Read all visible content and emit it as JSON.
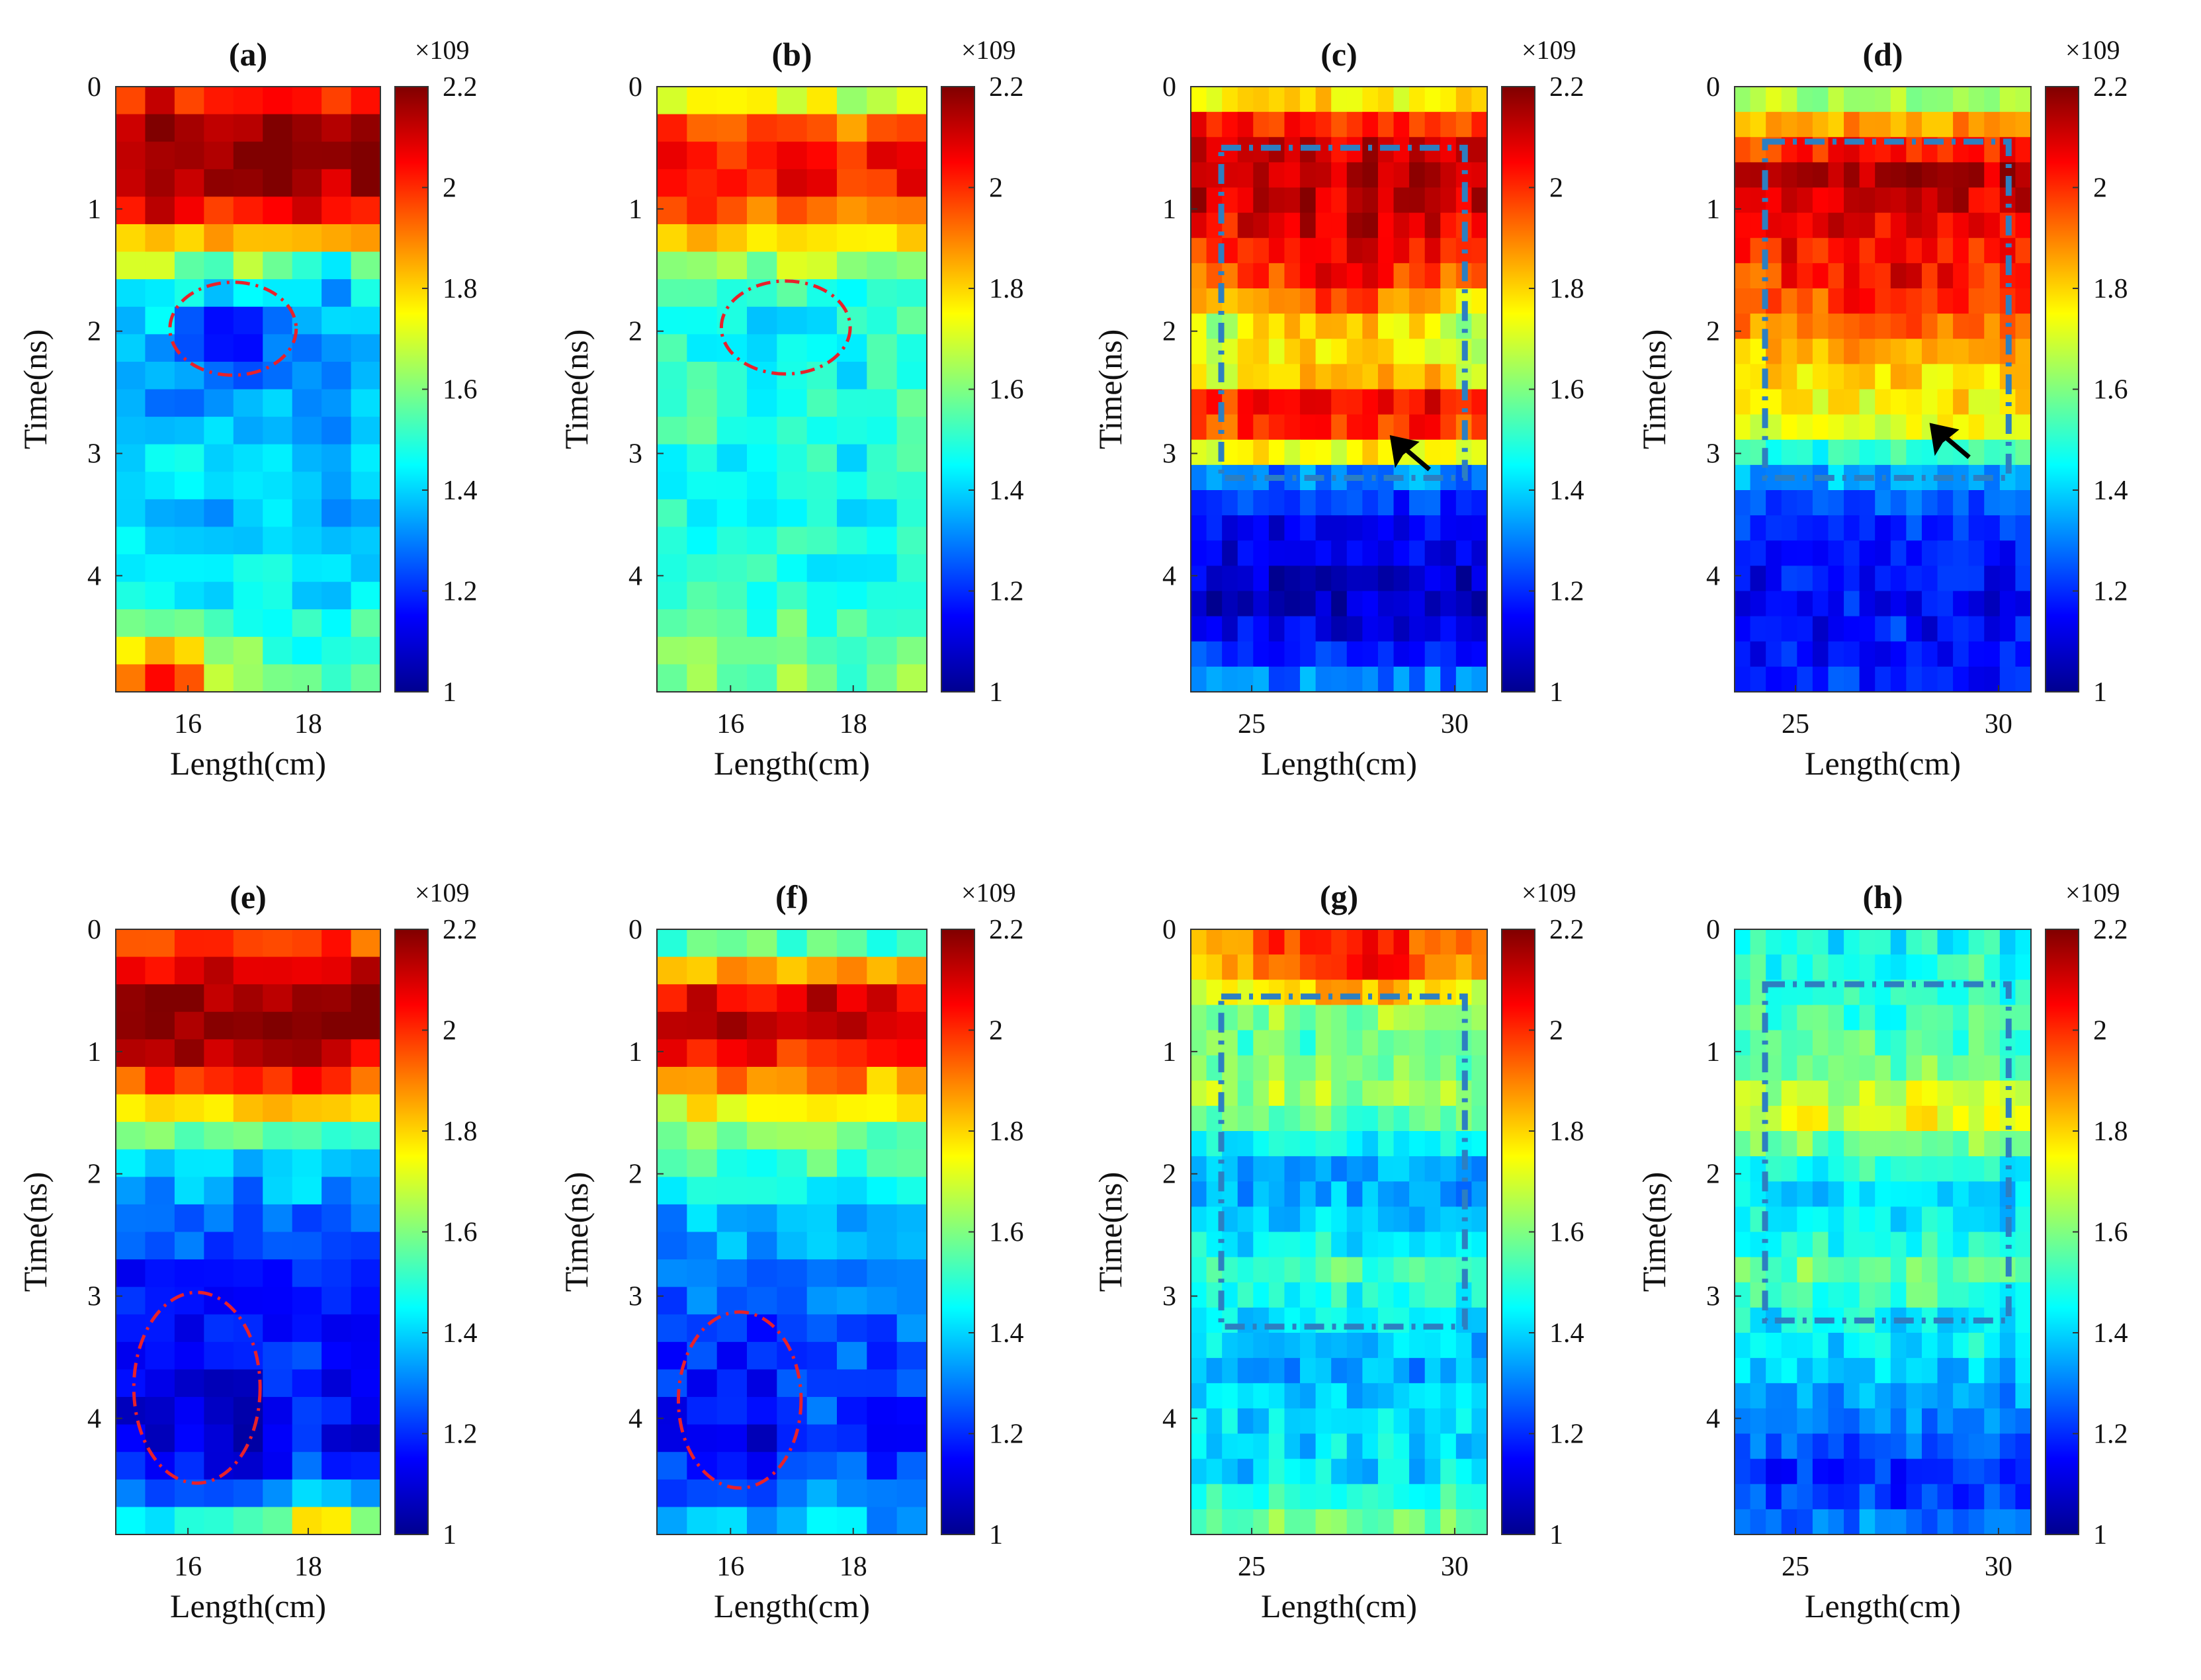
{
  "colormap": [
    "#00008f",
    "#0000ff",
    "#0080ff",
    "#00ffff",
    "#80ff80",
    "#ffff00",
    "#ff8000",
    "#ff0000",
    "#800000"
  ],
  "chart_data": [
    {
      "panel": "(a)",
      "type": "heatmap",
      "title": "(a)",
      "xlabel": "Length(cm)",
      "ylabel": "Time(ns)",
      "xlim": [
        14.8,
        19.2
      ],
      "ylim": [
        0,
        4.95
      ],
      "xticks": [
        "16",
        "18"
      ],
      "xtick_values": [
        16,
        18
      ],
      "yticks": [
        "0",
        "1",
        "2",
        "3",
        "4"
      ],
      "ytick_values": [
        0,
        1,
        2,
        3,
        4
      ],
      "clim": [
        1,
        2.2
      ],
      "colorbar_ticks": [
        "1",
        "1.2",
        "1.4",
        "1.6",
        "1.8",
        "2",
        "2.2"
      ],
      "colorbar_exponent": "×10^9",
      "ncols": 9,
      "nrows": 22,
      "profile": [
        {
          "t": 0,
          "v": 1.85
        },
        {
          "t": 0.15,
          "v": 2.1
        },
        {
          "t": 0.5,
          "v": 2.2
        },
        {
          "t": 0.95,
          "v": 2.12
        },
        {
          "t": 1.3,
          "v": 1.8
        },
        {
          "t": 1.6,
          "v": 1.5
        },
        {
          "t": 2.0,
          "v": 1.35
        },
        {
          "t": 2.5,
          "v": 1.3
        },
        {
          "t": 3.0,
          "v": 1.42
        },
        {
          "t": 3.5,
          "v": 1.38
        },
        {
          "t": 4.0,
          "v": 1.4
        },
        {
          "t": 4.3,
          "v": 1.48
        },
        {
          "t": 4.5,
          "v": 1.5
        },
        {
          "t": 4.95,
          "v": 1.55
        }
      ],
      "features": [
        {
          "x": 16.7,
          "t": 2.0,
          "rx": 0.8,
          "rt": 0.35,
          "dv": -0.18
        },
        {
          "x": 15.6,
          "t": 4.75,
          "rx": 1.1,
          "rt": 0.25,
          "dv": 0.5
        },
        {
          "x": 18.5,
          "t": 1.5,
          "rx": 0.7,
          "rt": 0.25,
          "dv": -0.15
        }
      ],
      "markers": [
        {
          "kind": "ellipse",
          "cx": 16.75,
          "cy": 1.98,
          "rx": 1.05,
          "ry": 0.38,
          "color": "#e8212b"
        }
      ]
    },
    {
      "panel": "(b)",
      "type": "heatmap",
      "title": "(b)",
      "xlabel": "Length(cm)",
      "ylabel": "Time(ns)",
      "xlim": [
        14.8,
        19.2
      ],
      "ylim": [
        0,
        4.95
      ],
      "xticks": [
        "16",
        "18"
      ],
      "xtick_values": [
        16,
        18
      ],
      "yticks": [
        "0",
        "1",
        "2",
        "3",
        "4"
      ],
      "ytick_values": [
        0,
        1,
        2,
        3,
        4
      ],
      "clim": [
        1,
        2.2
      ],
      "colorbar_ticks": [
        "1",
        "1.2",
        "1.4",
        "1.6",
        "1.8",
        "2",
        "2.2"
      ],
      "colorbar_exponent": "×10^9",
      "ncols": 9,
      "nrows": 22,
      "profile": [
        {
          "t": 0,
          "v": 1.55
        },
        {
          "t": 0.2,
          "v": 1.85
        },
        {
          "t": 0.6,
          "v": 2.08
        },
        {
          "t": 1.0,
          "v": 1.95
        },
        {
          "t": 1.35,
          "v": 1.7
        },
        {
          "t": 1.7,
          "v": 1.52
        },
        {
          "t": 2.2,
          "v": 1.48
        },
        {
          "t": 2.8,
          "v": 1.5
        },
        {
          "t": 3.3,
          "v": 1.45
        },
        {
          "t": 4.0,
          "v": 1.48
        },
        {
          "t": 4.5,
          "v": 1.55
        },
        {
          "t": 4.95,
          "v": 1.6
        }
      ],
      "features": [
        {
          "x": 16.8,
          "t": 2.0,
          "rx": 0.7,
          "rt": 0.35,
          "dv": -0.12
        }
      ],
      "markers": [
        {
          "kind": "ellipse",
          "cx": 16.9,
          "cy": 1.97,
          "rx": 1.05,
          "ry": 0.38,
          "color": "#e8212b"
        }
      ]
    },
    {
      "panel": "(c)",
      "type": "heatmap",
      "title": "(c)",
      "xlabel": "Length(cm)",
      "ylabel": "Time(ns)",
      "xlim": [
        23.5,
        30.8
      ],
      "ylim": [
        0,
        4.95
      ],
      "xticks": [
        "25",
        "30"
      ],
      "xtick_values": [
        25,
        30
      ],
      "yticks": [
        "0",
        "1",
        "2",
        "3",
        "4"
      ],
      "ytick_values": [
        0,
        1,
        2,
        3,
        4
      ],
      "clim": [
        1,
        2.2
      ],
      "colorbar_ticks": [
        "1",
        "1.2",
        "1.4",
        "1.6",
        "1.8",
        "2",
        "2.2"
      ],
      "colorbar_exponent": "×10^9",
      "ncols": 19,
      "nrows": 24,
      "profile": [
        {
          "t": 0,
          "v": 1.6
        },
        {
          "t": 0.2,
          "v": 1.95
        },
        {
          "t": 0.6,
          "v": 2.15
        },
        {
          "t": 1.0,
          "v": 2.1
        },
        {
          "t": 1.5,
          "v": 1.95
        },
        {
          "t": 2.0,
          "v": 1.75
        },
        {
          "t": 2.35,
          "v": 1.8
        },
        {
          "t": 2.6,
          "v": 2.08
        },
        {
          "t": 2.9,
          "v": 1.95
        },
        {
          "t": 3.2,
          "v": 1.3
        },
        {
          "t": 3.6,
          "v": 1.15
        },
        {
          "t": 4.2,
          "v": 1.05
        },
        {
          "t": 4.6,
          "v": 1.18
        },
        {
          "t": 4.95,
          "v": 1.35
        }
      ],
      "features": [
        {
          "x": 27.2,
          "t": 1.6,
          "rx": 2.2,
          "rt": 0.45,
          "dv": 0.12
        },
        {
          "x": 23.9,
          "t": 2.1,
          "rx": 0.9,
          "rt": 0.6,
          "dv": -0.12
        },
        {
          "x": 30.4,
          "t": 2.1,
          "rx": 0.9,
          "rt": 0.6,
          "dv": -0.12
        }
      ],
      "markers": [
        {
          "kind": "rect",
          "x0": 24.25,
          "x1": 30.25,
          "y0": 0.5,
          "y1": 3.2,
          "color": "#2d7fc1"
        },
        {
          "kind": "arrow",
          "x": 28.4,
          "y": 2.85,
          "color": "#000000"
        }
      ]
    },
    {
      "panel": "(d)",
      "type": "heatmap",
      "title": "(d)",
      "xlabel": "Length(cm)",
      "ylabel": "Time(ns)",
      "xlim": [
        23.5,
        30.8
      ],
      "ylim": [
        0,
        4.95
      ],
      "xticks": [
        "25",
        "30"
      ],
      "xtick_values": [
        25,
        30
      ],
      "yticks": [
        "0",
        "1",
        "2",
        "3",
        "4"
      ],
      "ytick_values": [
        0,
        1,
        2,
        3,
        4
      ],
      "clim": [
        1,
        2.2
      ],
      "colorbar_ticks": [
        "1",
        "1.2",
        "1.4",
        "1.6",
        "1.8",
        "2",
        "2.2"
      ],
      "colorbar_exponent": "×10^9",
      "ncols": 19,
      "nrows": 24,
      "profile": [
        {
          "t": 0,
          "v": 1.55
        },
        {
          "t": 0.3,
          "v": 1.85
        },
        {
          "t": 0.7,
          "v": 2.15
        },
        {
          "t": 1.1,
          "v": 2.05
        },
        {
          "t": 1.7,
          "v": 1.95
        },
        {
          "t": 2.3,
          "v": 1.8
        },
        {
          "t": 2.8,
          "v": 1.72
        },
        {
          "t": 3.1,
          "v": 1.4
        },
        {
          "t": 3.5,
          "v": 1.2
        },
        {
          "t": 4.2,
          "v": 1.15
        },
        {
          "t": 4.95,
          "v": 1.2
        }
      ],
      "features": [
        {
          "x": 27.5,
          "t": 1.7,
          "rx": 2.0,
          "rt": 0.5,
          "dv": 0.1
        }
      ],
      "markers": [
        {
          "kind": "rect",
          "x0": 24.25,
          "x1": 30.25,
          "y0": 0.45,
          "y1": 3.2,
          "color": "#2d7fc1"
        },
        {
          "kind": "arrow",
          "x": 28.3,
          "y": 2.75,
          "color": "#000000"
        }
      ]
    },
    {
      "panel": "(e)",
      "type": "heatmap",
      "title": "(e)",
      "xlabel": "Length(cm)",
      "ylabel": "Time(ns)",
      "xlim": [
        14.8,
        19.2
      ],
      "ylim": [
        0,
        4.95
      ],
      "xticks": [
        "16",
        "18"
      ],
      "xtick_values": [
        16,
        18
      ],
      "yticks": [
        "0",
        "1",
        "2",
        "3",
        "4"
      ],
      "ytick_values": [
        0,
        1,
        2,
        3,
        4
      ],
      "clim": [
        1,
        2.2
      ],
      "colorbar_ticks": [
        "1",
        "1.2",
        "1.4",
        "1.6",
        "1.8",
        "2",
        "2.2"
      ],
      "colorbar_exponent": "×10^9",
      "ncols": 9,
      "nrows": 22,
      "profile": [
        {
          "t": 0,
          "v": 1.9
        },
        {
          "t": 0.3,
          "v": 2.1
        },
        {
          "t": 0.7,
          "v": 2.2
        },
        {
          "t": 1.1,
          "v": 2.1
        },
        {
          "t": 1.4,
          "v": 1.85
        },
        {
          "t": 1.7,
          "v": 1.55
        },
        {
          "t": 2.0,
          "v": 1.38
        },
        {
          "t": 2.4,
          "v": 1.25
        },
        {
          "t": 3.0,
          "v": 1.2
        },
        {
          "t": 3.5,
          "v": 1.18
        },
        {
          "t": 4.2,
          "v": 1.15
        },
        {
          "t": 4.6,
          "v": 1.25
        },
        {
          "t": 4.95,
          "v": 1.55
        }
      ],
      "features": [
        {
          "x": 16.1,
          "t": 3.8,
          "rx": 0.9,
          "rt": 0.8,
          "dv": -0.1
        },
        {
          "x": 18.3,
          "t": 4.8,
          "rx": 0.9,
          "rt": 0.2,
          "dv": 0.35
        }
      ],
      "markers": [
        {
          "kind": "ellipse",
          "cx": 16.15,
          "cy": 3.75,
          "rx": 1.05,
          "ry": 0.78,
          "color": "#e8212b"
        }
      ]
    },
    {
      "panel": "(f)",
      "type": "heatmap",
      "title": "(f)",
      "xlabel": "Length(cm)",
      "ylabel": "Time(ns)",
      "xlim": [
        14.8,
        19.2
      ],
      "ylim": [
        0,
        4.95
      ],
      "xticks": [
        "16",
        "18"
      ],
      "xtick_values": [
        16,
        18
      ],
      "yticks": [
        "0",
        "1",
        "2",
        "3",
        "4"
      ],
      "ytick_values": [
        0,
        1,
        2,
        3,
        4
      ],
      "clim": [
        1,
        2.2
      ],
      "colorbar_ticks": [
        "1",
        "1.2",
        "1.4",
        "1.6",
        "1.8",
        "2",
        "2.2"
      ],
      "colorbar_exponent": "×10^9",
      "ncols": 9,
      "nrows": 22,
      "profile": [
        {
          "t": 0,
          "v": 1.4
        },
        {
          "t": 0.25,
          "v": 1.75
        },
        {
          "t": 0.6,
          "v": 2.12
        },
        {
          "t": 1.0,
          "v": 2.05
        },
        {
          "t": 1.35,
          "v": 1.8
        },
        {
          "t": 1.7,
          "v": 1.6
        },
        {
          "t": 2.0,
          "v": 1.48
        },
        {
          "t": 2.4,
          "v": 1.35
        },
        {
          "t": 3.0,
          "v": 1.3
        },
        {
          "t": 3.5,
          "v": 1.25
        },
        {
          "t": 4.2,
          "v": 1.2
        },
        {
          "t": 4.6,
          "v": 1.3
        },
        {
          "t": 4.95,
          "v": 1.4
        }
      ],
      "features": [
        {
          "x": 16.1,
          "t": 3.9,
          "rx": 0.8,
          "rt": 0.8,
          "dv": -0.1
        }
      ],
      "markers": [
        {
          "kind": "ellipse",
          "cx": 16.15,
          "cy": 3.85,
          "rx": 1.0,
          "ry": 0.72,
          "color": "#e8212b"
        }
      ]
    },
    {
      "panel": "(g)",
      "type": "heatmap",
      "title": "(g)",
      "xlabel": "Length(cm)",
      "ylabel": "Time(ns)",
      "xlim": [
        23.5,
        30.8
      ],
      "ylim": [
        0,
        4.95
      ],
      "xticks": [
        "25",
        "30"
      ],
      "xtick_values": [
        25,
        30
      ],
      "yticks": [
        "0",
        "1",
        "2",
        "3",
        "4"
      ],
      "ytick_values": [
        0,
        1,
        2,
        3,
        4
      ],
      "clim": [
        1,
        2.2
      ],
      "colorbar_ticks": [
        "1",
        "1.2",
        "1.4",
        "1.6",
        "1.8",
        "2",
        "2.2"
      ],
      "colorbar_exponent": "×10^9",
      "ncols": 19,
      "nrows": 24,
      "profile": [
        {
          "t": 0,
          "v": 1.85
        },
        {
          "t": 0.4,
          "v": 1.8
        },
        {
          "t": 0.7,
          "v": 1.6
        },
        {
          "t": 1.0,
          "v": 1.55
        },
        {
          "t": 1.4,
          "v": 1.65
        },
        {
          "t": 1.7,
          "v": 1.48
        },
        {
          "t": 2.0,
          "v": 1.32
        },
        {
          "t": 2.4,
          "v": 1.38
        },
        {
          "t": 2.8,
          "v": 1.55
        },
        {
          "t": 3.2,
          "v": 1.42
        },
        {
          "t": 3.6,
          "v": 1.35
        },
        {
          "t": 4.0,
          "v": 1.42
        },
        {
          "t": 4.4,
          "v": 1.4
        },
        {
          "t": 4.95,
          "v": 1.6
        }
      ],
      "features": [
        {
          "x": 27.5,
          "t": 0.25,
          "rx": 2.5,
          "rt": 0.3,
          "dv": 0.25
        }
      ],
      "markers": [
        {
          "kind": "rect",
          "x0": 24.25,
          "x1": 30.25,
          "y0": 0.55,
          "y1": 3.25,
          "color": "#2d7fc1"
        }
      ]
    },
    {
      "panel": "(h)",
      "type": "heatmap",
      "title": "(h)",
      "xlabel": "Length(cm)",
      "ylabel": "Time(ns)",
      "xlim": [
        23.5,
        30.8
      ],
      "ylim": [
        0,
        4.95
      ],
      "xticks": [
        "25",
        "30"
      ],
      "xtick_values": [
        25,
        30
      ],
      "yticks": [
        "0",
        "1",
        "2",
        "3",
        "4"
      ],
      "ytick_values": [
        0,
        1,
        2,
        3,
        4
      ],
      "clim": [
        1,
        2.2
      ],
      "colorbar_ticks": [
        "1",
        "1.2",
        "1.4",
        "1.6",
        "1.8",
        "2",
        "2.2"
      ],
      "colorbar_exponent": "×10^9",
      "ncols": 19,
      "nrows": 24,
      "profile": [
        {
          "t": 0,
          "v": 1.45
        },
        {
          "t": 0.4,
          "v": 1.5
        },
        {
          "t": 0.8,
          "v": 1.52
        },
        {
          "t": 1.2,
          "v": 1.6
        },
        {
          "t": 1.5,
          "v": 1.72
        },
        {
          "t": 1.8,
          "v": 1.55
        },
        {
          "t": 2.1,
          "v": 1.4
        },
        {
          "t": 2.5,
          "v": 1.45
        },
        {
          "t": 2.8,
          "v": 1.58
        },
        {
          "t": 3.2,
          "v": 1.45
        },
        {
          "t": 3.6,
          "v": 1.4
        },
        {
          "t": 4.0,
          "v": 1.3
        },
        {
          "t": 4.5,
          "v": 1.2
        },
        {
          "t": 4.95,
          "v": 1.3
        }
      ],
      "features": [
        {
          "x": 28.3,
          "t": 1.45,
          "rx": 1.5,
          "rt": 0.2,
          "dv": 0.06
        }
      ],
      "markers": [
        {
          "kind": "rect",
          "x0": 24.25,
          "x1": 30.25,
          "y0": 0.45,
          "y1": 3.2,
          "color": "#2d7fc1"
        }
      ]
    }
  ]
}
